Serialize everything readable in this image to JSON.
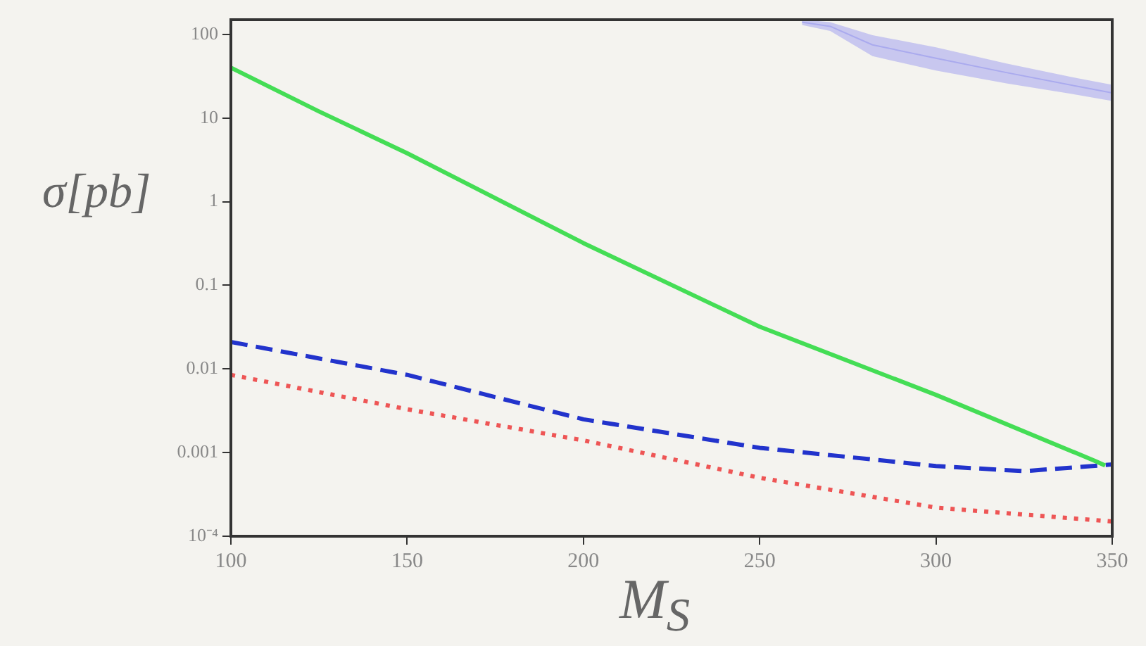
{
  "chart_data": {
    "type": "line",
    "xlabel": "M$_{S}$",
    "ylabel": "σ[pb]",
    "log": "y",
    "grid": false,
    "legend": false,
    "marker": "none",
    "xlim": [
      100,
      350
    ],
    "xticks": [
      100,
      150,
      200,
      250,
      300,
      350
    ],
    "ylim": [
      0.0001,
      150
    ],
    "yticks": [
      {
        "value": 0.0001,
        "label": "10⁻⁴"
      },
      0.001,
      0.01,
      0.1,
      1,
      10,
      100
    ],
    "series": [
      {
        "color": "#44dd55",
        "line_style": "solid",
        "x": [
          100,
          125,
          150,
          200,
          250,
          300,
          345,
          348
        ],
        "values": [
          40,
          12,
          3.8,
          0.32,
          0.032,
          0.0049,
          0.0008,
          0.0007
        ]
      },
      {
        "color": "#2233cc",
        "line_style": "dashed",
        "x": [
          100,
          150,
          200,
          250,
          300,
          325,
          350
        ],
        "values": [
          0.021,
          0.0085,
          0.0025,
          0.00114,
          0.00069,
          0.0006,
          0.00072
        ]
      },
      {
        "color": "#ee5555",
        "line_style": "dotted",
        "x": [
          100,
          150,
          200,
          250,
          300,
          350
        ],
        "values": [
          0.0085,
          0.0033,
          0.0014,
          0.0005,
          0.00022,
          0.00015
        ]
      },
      {
        "color": "#aaaaee",
        "line_style": "solid",
        "x": [
          262,
          270,
          282,
          300,
          320,
          340,
          350
        ],
        "values": [
          140,
          125,
          75,
          52,
          35,
          24,
          20
        ],
        "lower": [
          130,
          110,
          55,
          37,
          26,
          19,
          16
        ],
        "upper": [
          150,
          140,
          98,
          70,
          45,
          30,
          25
        ]
      }
    ]
  }
}
